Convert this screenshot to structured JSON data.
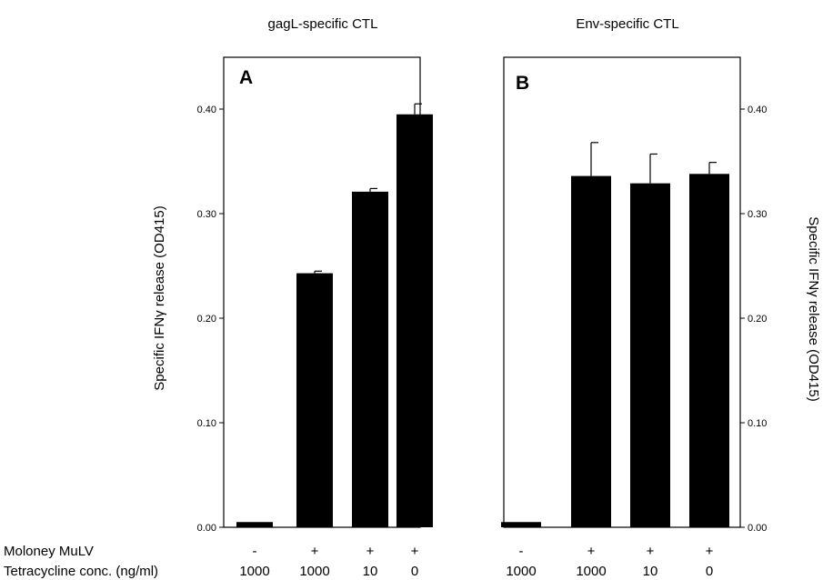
{
  "panels": [
    {
      "title": "gagL-specific CTL",
      "letter": "A",
      "ylabel": "Specific IFNγ release (OD415)",
      "axis_side": "left"
    },
    {
      "title": "Env-specific CTL",
      "letter": "B",
      "ylabel": "Specific IFNγ release (OD415)",
      "axis_side": "right"
    }
  ],
  "row_labels": {
    "virus": "Moloney MuLV",
    "tet": "Tetracycline conc. (ng/ml)"
  },
  "conditions": {
    "virus": [
      "-",
      "+",
      "+",
      "+"
    ],
    "tet": [
      "1000",
      "1000",
      "10",
      "0"
    ]
  },
  "chart_data": [
    {
      "type": "bar",
      "title": "gagL-specific CTL",
      "panel_label": "A",
      "ylabel": "Specific IFNγ release (OD415)",
      "categories": [
        "- / 1000",
        "+ / 1000",
        "+ / 10",
        "+ / 0"
      ],
      "values": [
        0.005,
        0.243,
        0.321,
        0.395
      ],
      "errors": [
        0.0,
        0.002,
        0.003,
        0.01
      ],
      "ylim": [
        0,
        0.45
      ],
      "yticks": [
        "0.00",
        "0.10",
        "0.20",
        "0.30",
        "0.40"
      ],
      "yticks_values": [
        0,
        0.1,
        0.2,
        0.3,
        0.4
      ],
      "bar_color": "#000000",
      "grid": false
    },
    {
      "type": "bar",
      "title": "Env-specific CTL",
      "panel_label": "B",
      "ylabel": "Specific IFNγ release (OD415)",
      "categories": [
        "- / 1000",
        "+ / 1000",
        "+ / 10",
        "+ / 0"
      ],
      "values": [
        0.005,
        0.336,
        0.329,
        0.338
      ],
      "errors": [
        0.0,
        0.032,
        0.028,
        0.011
      ],
      "ylim": [
        0,
        0.45
      ],
      "yticks": [
        "0.00",
        "0.10",
        "0.20",
        "0.30",
        "0.40"
      ],
      "yticks_values": [
        0,
        0.1,
        0.2,
        0.3,
        0.4
      ],
      "bar_color": "#000000",
      "grid": false
    }
  ]
}
